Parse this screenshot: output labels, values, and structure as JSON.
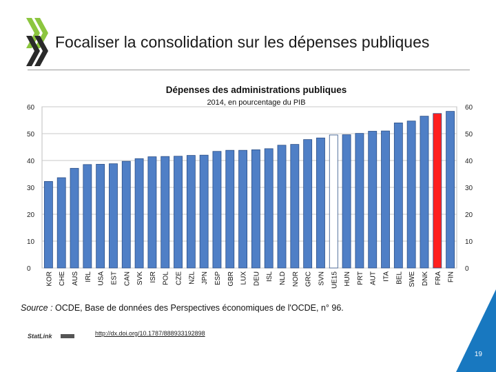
{
  "slide": {
    "title": "Focaliser la consolidation sur les dépenses publiques",
    "page_number": "19"
  },
  "source": {
    "prefix": "Source :",
    "text": " OCDE, Base de données des Perspectives économiques de l'OCDE, n° 96."
  },
  "statlink": {
    "logo_text": "StatLink",
    "url": "http://dx.doi.org/10.1787/888933192898"
  },
  "colors": {
    "bar": "#4f7fc6",
    "bar_stroke": "#2c4f86",
    "euro_area": "#ffffff",
    "highlight": "#ff2020",
    "logo_green": "#8cc63f",
    "corner_blue": "#1878c0"
  },
  "chart_data": {
    "type": "bar",
    "title": "Dépenses des administrations publiques",
    "subtitle": "2014, en pourcentage du PIB",
    "ylim": [
      0,
      60
    ],
    "yticks": [
      0,
      10,
      20,
      30,
      40,
      50,
      60
    ],
    "grid": true,
    "categories": [
      "KOR",
      "CHE",
      "AUS",
      "IRL",
      "USA",
      "EST",
      "CAN",
      "SVK",
      "ISR",
      "POL",
      "CZE",
      "NZL",
      "JPN",
      "ESP",
      "GBR",
      "LUX",
      "DEU",
      "ISL",
      "NLD",
      "NOR",
      "GRC",
      "SVN",
      "UE15",
      "HUN",
      "PRT",
      "AUT",
      "ITA",
      "BEL",
      "SWE",
      "DNK",
      "FRA",
      "FIN"
    ],
    "values": [
      32.2,
      33.6,
      37.1,
      38.5,
      38.6,
      38.8,
      39.7,
      40.7,
      41.4,
      41.5,
      41.6,
      41.9,
      42.0,
      43.4,
      43.8,
      43.8,
      44.0,
      44.4,
      45.7,
      46.0,
      47.8,
      48.4,
      49.5,
      49.6,
      50.1,
      50.9,
      51.0,
      54.0,
      54.7,
      56.5,
      57.5,
      58.3
    ],
    "highlight": {
      "UE15": "euro_area",
      "FRA": "highlight"
    }
  }
}
